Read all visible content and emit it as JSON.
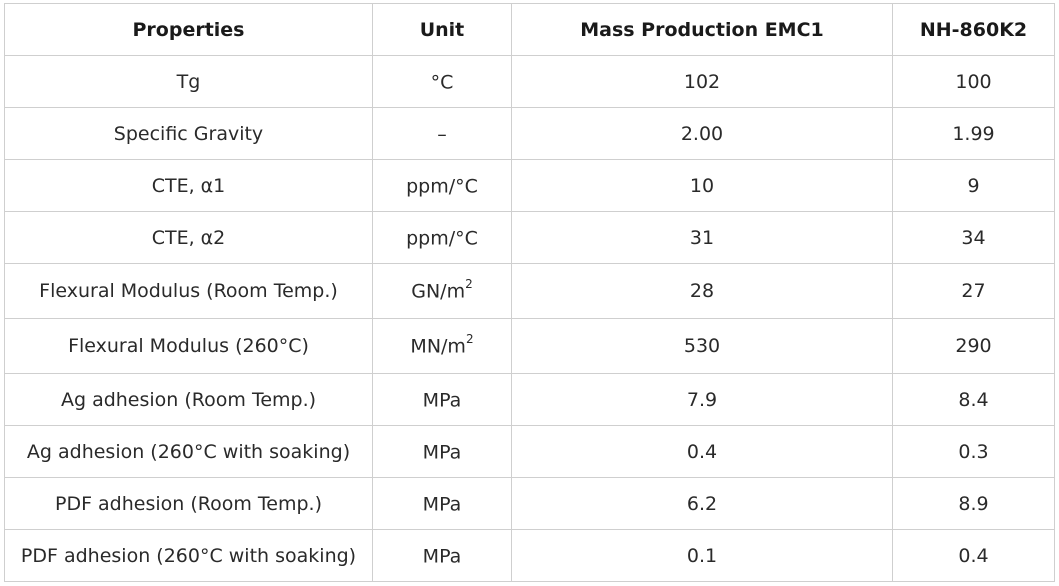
{
  "table": {
    "headers": [
      "Properties",
      "Unit",
      "Mass Production EMC1",
      "NH-860K2"
    ],
    "rows": [
      {
        "property": "Tg",
        "unit": "°C",
        "unit_sup": "",
        "emc1": "102",
        "nh860k2": "100"
      },
      {
        "property": "Specific Gravity",
        "unit": "–",
        "unit_sup": "",
        "emc1": "2.00",
        "nh860k2": "1.99"
      },
      {
        "property": "CTE, α1",
        "unit": "ppm/°C",
        "unit_sup": "",
        "emc1": "10",
        "nh860k2": "9"
      },
      {
        "property": "CTE, α2",
        "unit": "ppm/°C",
        "unit_sup": "",
        "emc1": "31",
        "nh860k2": "34"
      },
      {
        "property": "Flexural Modulus (Room Temp.)",
        "unit": "GN/m",
        "unit_sup": "2",
        "emc1": "28",
        "nh860k2": "27"
      },
      {
        "property": "Flexural Modulus (260°C)",
        "unit": "MN/m",
        "unit_sup": "2",
        "emc1": "530",
        "nh860k2": "290"
      },
      {
        "property": "Ag adhesion (Room Temp.)",
        "unit": "MPa",
        "unit_sup": "",
        "emc1": "7.9",
        "nh860k2": "8.4"
      },
      {
        "property": "Ag adhesion (260°C with soaking)",
        "unit": "MPa",
        "unit_sup": "",
        "emc1": "0.4",
        "nh860k2": "0.3"
      },
      {
        "property": "PDF adhesion (Room Temp.)",
        "unit": "MPa",
        "unit_sup": "",
        "emc1": "6.2",
        "nh860k2": "8.9"
      },
      {
        "property": "PDF adhesion (260°C with soaking)",
        "unit": "MPa",
        "unit_sup": "",
        "emc1": "0.1",
        "nh860k2": "0.4"
      }
    ]
  }
}
